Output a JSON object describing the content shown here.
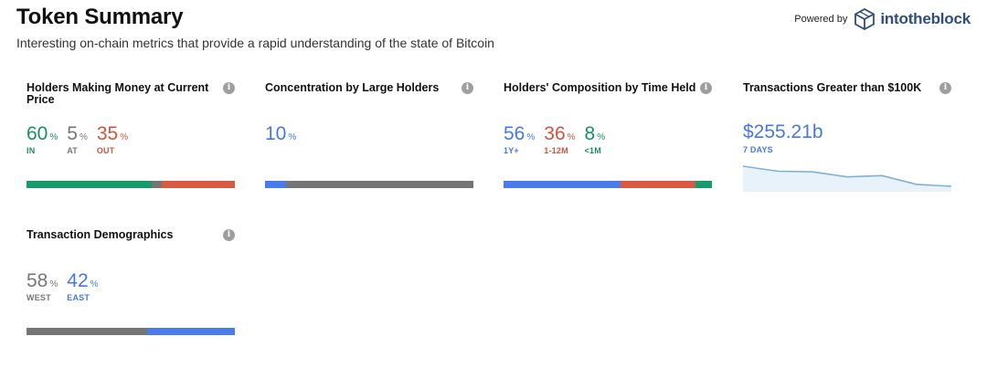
{
  "header": {
    "title": "Token Summary",
    "subtitle": "Interesting on-chain metrics that provide a rapid understanding of the state of Bitcoin",
    "powered_by": "Powered by",
    "brand": "intotheblock"
  },
  "colors": {
    "green": "#1a8f5e",
    "grey": "#767676",
    "red": "#cc5540",
    "blue": "#4a78d8",
    "bar_green": "#179a6c",
    "bar_red": "#d95a43",
    "bar_blue": "#4a7bea",
    "bar_grey": "#757575"
  },
  "cards": {
    "holders_money": {
      "title": "Holders Making Money at Current Price",
      "in": {
        "value": "60",
        "pct": "%",
        "label": "IN",
        "share": 60
      },
      "at": {
        "value": "5",
        "pct": "%",
        "label": "AT",
        "share": 5
      },
      "out": {
        "value": "35",
        "pct": "%",
        "label": "OUT",
        "share": 35
      }
    },
    "concentration": {
      "title": "Concentration by Large Holders",
      "value": "10",
      "pct": "%",
      "share": 10
    },
    "composition": {
      "title": "Holders' Composition by Time Held",
      "y1": {
        "value": "56",
        "pct": "%",
        "label": "1Y+",
        "share": 56
      },
      "m12": {
        "value": "36",
        "pct": "%",
        "label": "1-12M",
        "share": 36
      },
      "m1": {
        "value": "8",
        "pct": "%",
        "label": "<1M",
        "share": 8
      }
    },
    "transactions": {
      "title": "Transactions Greater than $100K",
      "value": "$255.21b",
      "label": "7 DAYS",
      "series": [
        255,
        247,
        246,
        238,
        240,
        226,
        223
      ]
    },
    "demographics": {
      "title": "Transaction Demographics",
      "west": {
        "value": "58",
        "pct": "%",
        "label": "WEST",
        "share": 58
      },
      "east": {
        "value": "42",
        "pct": "%",
        "label": "EAST",
        "share": 42
      }
    }
  }
}
